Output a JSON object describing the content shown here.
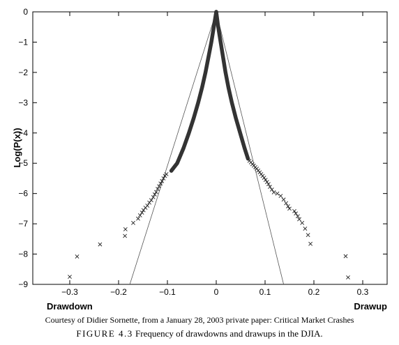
{
  "chart_data": {
    "type": "scatter",
    "title": "",
    "ylabel": "Log(P(x))",
    "xlabel_left": "Drawdown",
    "xlabel_right": "Drawup",
    "xlim": [
      -0.33,
      0.33
    ],
    "ylim": [
      -9,
      0
    ],
    "x_ticks": [
      -0.3,
      -0.2,
      -0.1,
      0,
      0.1,
      0.2,
      0.3
    ],
    "x_tick_labels": [
      "−0.3",
      "−0.2",
      "−0.1",
      "0",
      "0.1",
      "0.2",
      "0.3"
    ],
    "y_ticks": [
      0,
      -1,
      -2,
      -3,
      -4,
      -5,
      -6,
      -7,
      -8,
      -9
    ],
    "y_tick_labels": [
      "0",
      "−1",
      "−2",
      "−3",
      "−4",
      "−5",
      "−6",
      "−7",
      "−8",
      "−9"
    ],
    "grid": false,
    "marker": "x",
    "series": [
      {
        "values": [
          [
            -0.3,
            -8.75
          ],
          [
            -0.285,
            -8.08
          ],
          [
            -0.238,
            -7.68
          ],
          [
            -0.187,
            -7.4
          ],
          [
            -0.186,
            -7.18
          ],
          [
            -0.17,
            -6.97
          ],
          [
            -0.16,
            -6.83
          ],
          [
            -0.156,
            -6.72
          ],
          [
            -0.152,
            -6.63
          ],
          [
            -0.149,
            -6.55
          ],
          [
            -0.145,
            -6.47
          ],
          [
            -0.141,
            -6.4
          ],
          [
            -0.137,
            -6.3
          ],
          [
            -0.133,
            -6.22
          ],
          [
            -0.129,
            -6.12
          ],
          [
            -0.126,
            -6.03
          ],
          [
            -0.123,
            -5.95
          ],
          [
            -0.12,
            -5.85
          ],
          [
            -0.117,
            -5.76
          ],
          [
            -0.114,
            -5.67
          ],
          [
            -0.111,
            -5.59
          ],
          [
            -0.108,
            -5.5
          ],
          [
            -0.105,
            -5.42
          ],
          [
            -0.102,
            -5.36
          ],
          [
            0.068,
            -4.92
          ],
          [
            0.071,
            -4.97
          ],
          [
            0.074,
            -5.03
          ],
          [
            0.077,
            -5.08
          ],
          [
            0.08,
            -5.13
          ],
          [
            0.083,
            -5.18
          ],
          [
            0.086,
            -5.24
          ],
          [
            0.089,
            -5.3
          ],
          [
            0.092,
            -5.36
          ],
          [
            0.095,
            -5.42
          ],
          [
            0.098,
            -5.48
          ],
          [
            0.101,
            -5.55
          ],
          [
            0.104,
            -5.62
          ],
          [
            0.107,
            -5.69
          ],
          [
            0.11,
            -5.78
          ],
          [
            0.114,
            -5.87
          ],
          [
            0.118,
            -5.96
          ],
          [
            0.125,
            -6.0
          ],
          [
            0.132,
            -6.08
          ],
          [
            0.138,
            -6.2
          ],
          [
            0.143,
            -6.32
          ],
          [
            0.147,
            -6.42
          ],
          [
            0.15,
            -6.5
          ],
          [
            0.16,
            -6.58
          ],
          [
            0.163,
            -6.66
          ],
          [
            0.167,
            -6.75
          ],
          [
            0.17,
            -6.85
          ],
          [
            0.176,
            -6.97
          ],
          [
            0.182,
            -7.16
          ],
          [
            0.188,
            -7.37
          ],
          [
            0.193,
            -7.66
          ],
          [
            0.265,
            -8.07
          ],
          [
            0.27,
            -8.77
          ]
        ],
        "dense_curve": {
          "left": [
            [
              0.0,
              0.0
            ],
            [
              -0.005,
              -0.5
            ],
            [
              -0.01,
              -1.0
            ],
            [
              -0.016,
              -1.5
            ],
            [
              -0.022,
              -2.0
            ],
            [
              -0.029,
              -2.5
            ],
            [
              -0.037,
              -3.0
            ],
            [
              -0.046,
              -3.5
            ],
            [
              -0.056,
              -4.0
            ],
            [
              -0.067,
              -4.5
            ],
            [
              -0.08,
              -5.0
            ],
            [
              -0.092,
              -5.25
            ]
          ],
          "right": [
            [
              0.0,
              0.0
            ],
            [
              0.004,
              -0.5
            ],
            [
              0.009,
              -1.0
            ],
            [
              0.014,
              -1.5
            ],
            [
              0.019,
              -2.0
            ],
            [
              0.025,
              -2.5
            ],
            [
              0.032,
              -3.0
            ],
            [
              0.04,
              -3.5
            ],
            [
              0.049,
              -4.0
            ],
            [
              0.058,
              -4.5
            ],
            [
              0.065,
              -4.85
            ]
          ]
        }
      }
    ],
    "fit_lines": [
      {
        "points": [
          [
            0.0,
            0.0
          ],
          [
            -0.177,
            -9.0
          ]
        ]
      },
      {
        "points": [
          [
            0.0,
            0.0
          ],
          [
            0.138,
            -9.0
          ]
        ]
      }
    ]
  },
  "caption": {
    "credit": "Courtesy of Didier Sornette, from a January 28, 2003 private paper: Critical Market Crashes",
    "figure_label": "FIGURE 4.3",
    "figure_text": "Frequency of drawdowns and drawups in the DJIA."
  }
}
